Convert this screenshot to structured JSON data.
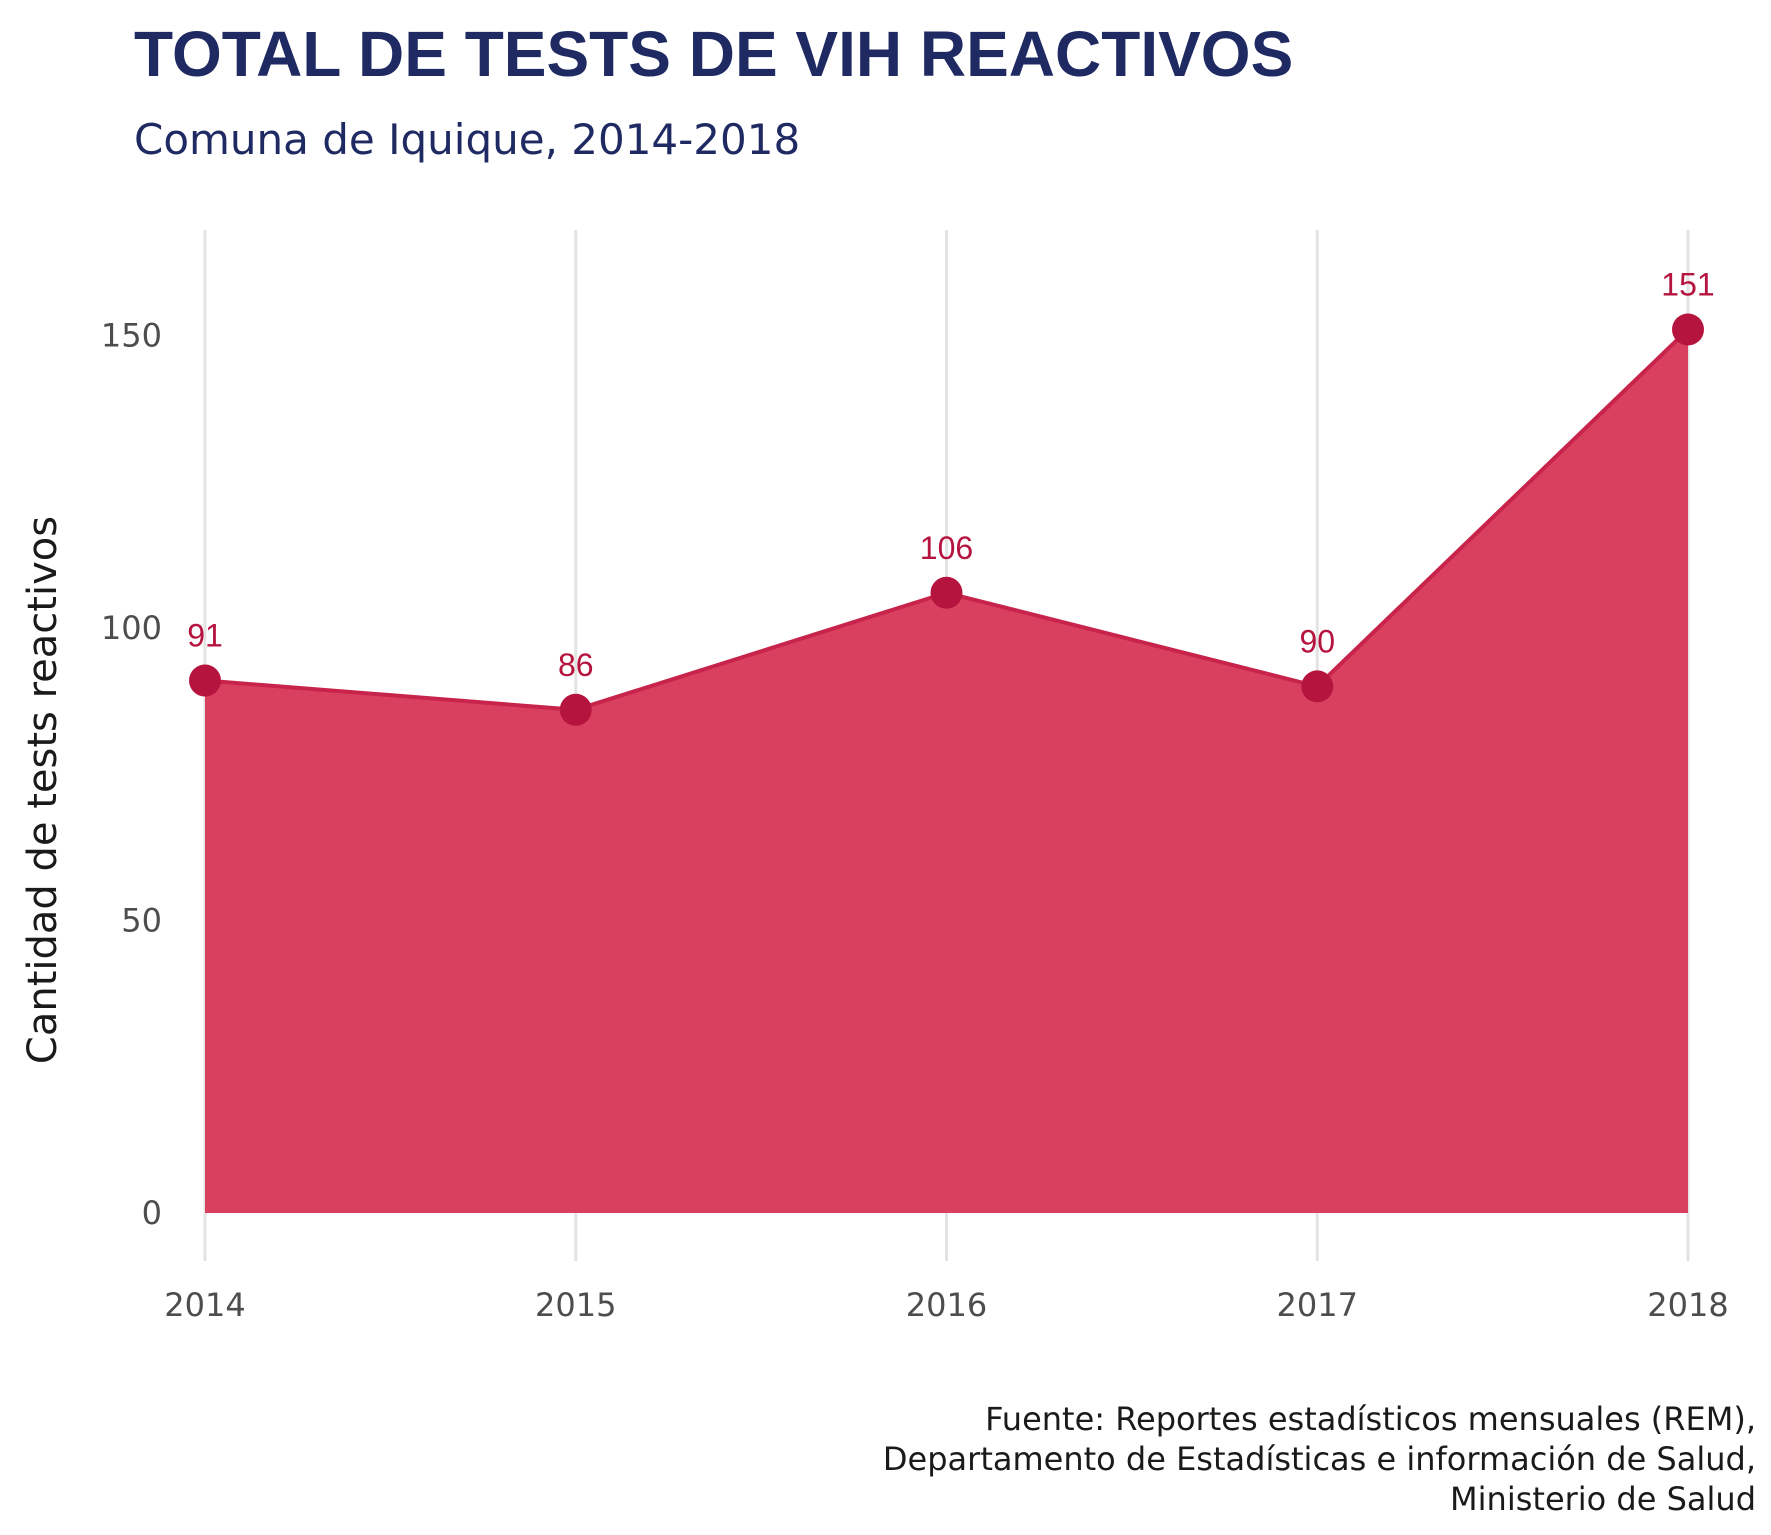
{
  "chart_data": {
    "type": "area",
    "title": "TOTAL DE TESTS DE VIH REACTIVOS",
    "subtitle": "Comuna de Iquique, 2014-2018",
    "xlabel": "",
    "ylabel": "Cantidad de tests reactivos",
    "x": [
      "2014",
      "2015",
      "2016",
      "2017",
      "2018"
    ],
    "values": [
      91,
      86,
      106,
      90,
      151
    ],
    "data_labels": [
      "91",
      "86",
      "106",
      "90",
      "151"
    ],
    "y_ticks": [
      0,
      50,
      100,
      150
    ],
    "y_tick_labels": [
      "0",
      "50",
      "100",
      "150"
    ],
    "ylim": [
      0,
      168
    ],
    "grid": "vertical-major",
    "legend": "none",
    "caption": [
      "Fuente: Reportes estadísticos mensuales (REM),",
      "Departamento de Estadísticas e información de Salud,",
      "Ministerio de Salud"
    ]
  },
  "colors": {
    "title": "#1f2a63",
    "subtitle": "#1f2a63",
    "area_fill": "#d9405f",
    "line": "#c8234a",
    "point": "#b5143f",
    "data_label": "#b5143f",
    "grid": "#e3e3e3"
  }
}
